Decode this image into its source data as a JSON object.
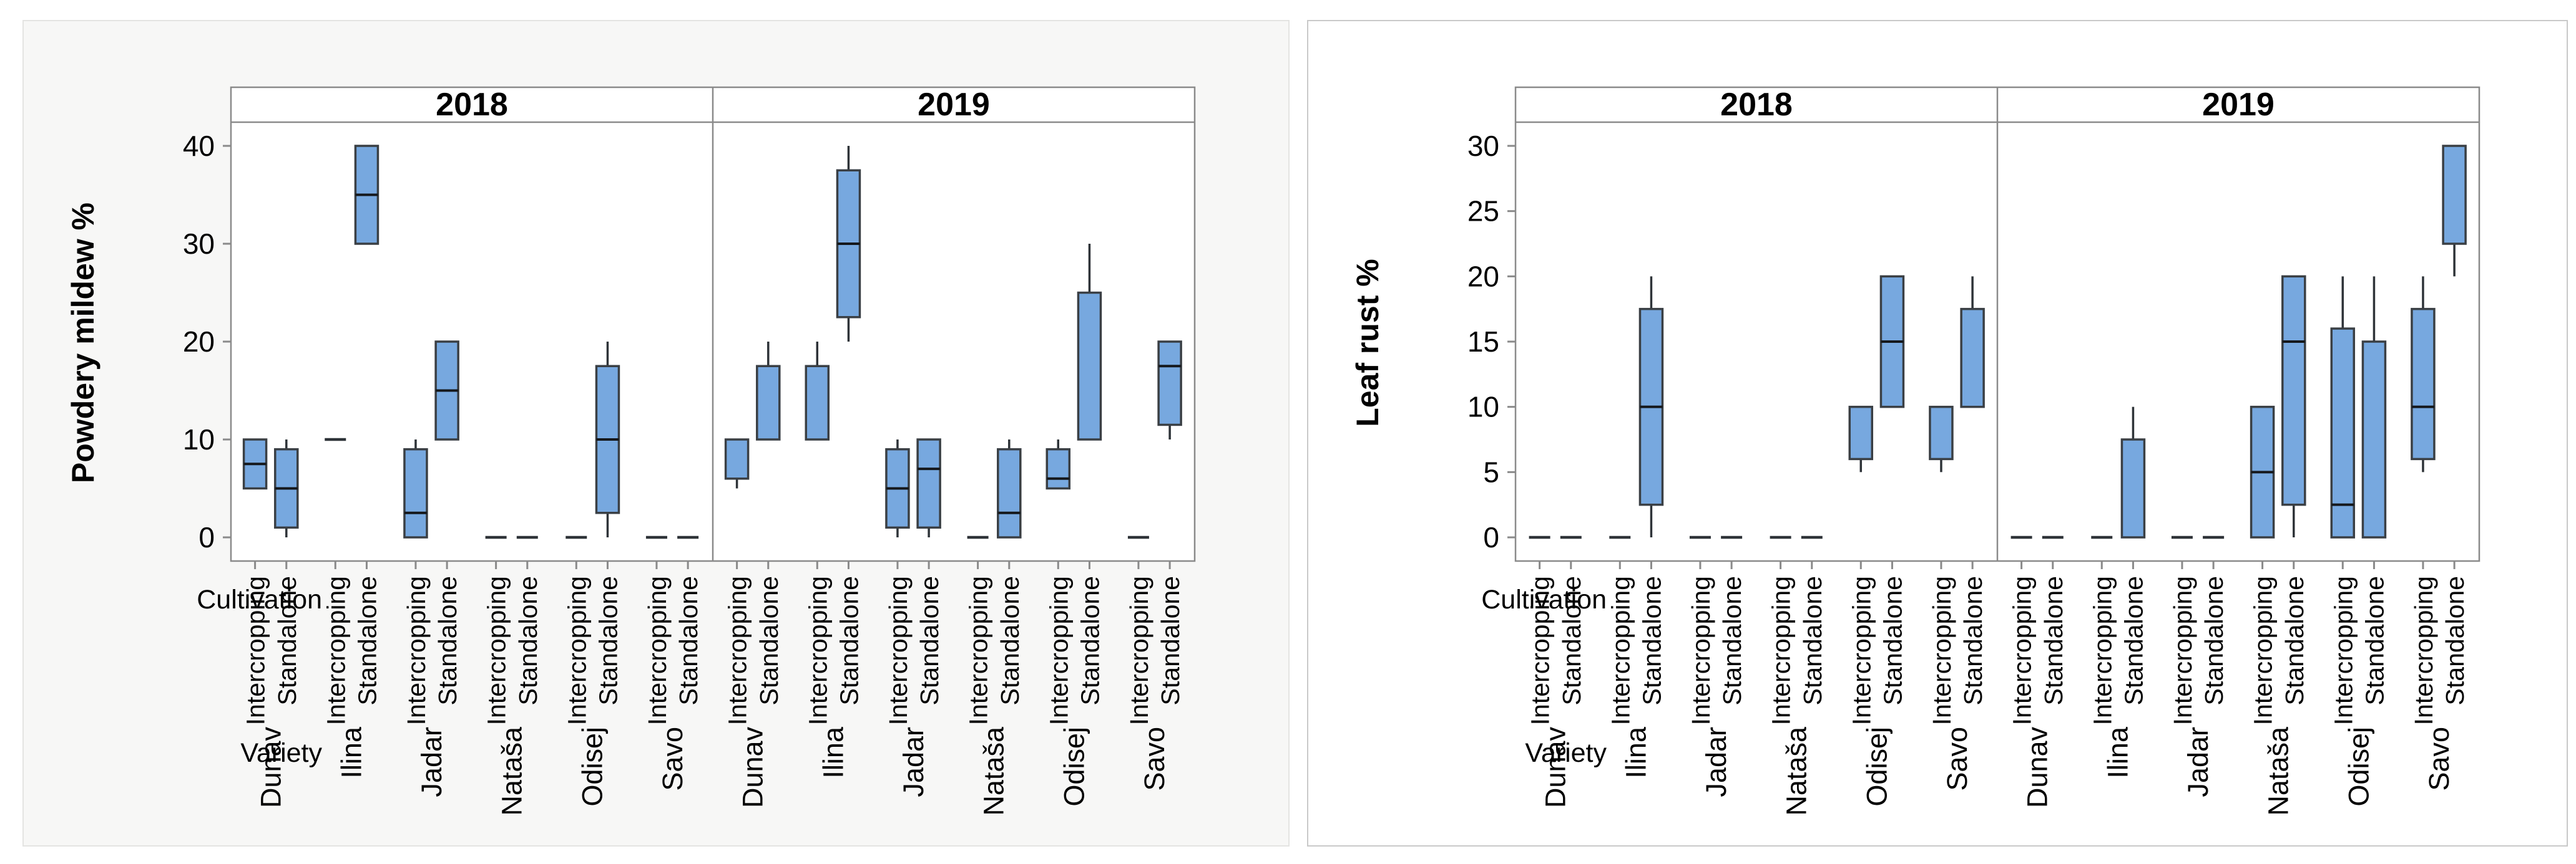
{
  "page": {
    "background": "#ffffff"
  },
  "chart_data": [
    {
      "type": "boxplot",
      "title": "",
      "ylabel": "Powdery mildew %",
      "xlabel": "",
      "panels": [
        "2018",
        "2019"
      ],
      "varieties": [
        "Dunav",
        "Ilina",
        "Jadar",
        "Nataša",
        "Odisej",
        "Savo"
      ],
      "cultivations": [
        "Intercropping",
        "Standalone"
      ],
      "row_labels": {
        "cultivation": "Cultivation",
        "variety": "Variety"
      },
      "yticks": [
        0,
        10,
        20,
        30,
        40
      ],
      "ylim": [
        -2.5,
        42.5
      ],
      "grid": false,
      "legend": "none",
      "colors": {
        "box_fill": "#77A8DF",
        "box_stroke": "#3a3f44",
        "median": "#15181c",
        "whisker": "#2e3338",
        "panel_border": "#8a8a8a",
        "tick": "#8a8a8a",
        "panel_bg": "#ffffff",
        "text": "#000000"
      },
      "boxes": [
        {
          "panel": "2018",
          "variety": "Dunav",
          "cultivation": "Intercropping",
          "low": 5,
          "q1": 5,
          "med": 7.5,
          "q3": 10,
          "high": 10
        },
        {
          "panel": "2018",
          "variety": "Dunav",
          "cultivation": "Standalone",
          "low": 0,
          "q1": 1,
          "med": 5,
          "q3": 9,
          "high": 10
        },
        {
          "panel": "2018",
          "variety": "Ilina",
          "cultivation": "Intercropping",
          "low": 10,
          "q1": 10,
          "med": 10,
          "q3": 10,
          "high": 10
        },
        {
          "panel": "2018",
          "variety": "Ilina",
          "cultivation": "Standalone",
          "low": 30,
          "q1": 30,
          "med": 35,
          "q3": 40,
          "high": 40
        },
        {
          "panel": "2018",
          "variety": "Jadar",
          "cultivation": "Intercropping",
          "low": 0,
          "q1": 0,
          "med": 2.5,
          "q3": 9,
          "high": 10
        },
        {
          "panel": "2018",
          "variety": "Jadar",
          "cultivation": "Standalone",
          "low": 10,
          "q1": 10,
          "med": 15,
          "q3": 20,
          "high": 20
        },
        {
          "panel": "2018",
          "variety": "Nataša",
          "cultivation": "Intercropping",
          "low": 0,
          "q1": 0,
          "med": 0,
          "q3": 0,
          "high": 0
        },
        {
          "panel": "2018",
          "variety": "Nataša",
          "cultivation": "Standalone",
          "low": 0,
          "q1": 0,
          "med": 0,
          "q3": 0,
          "high": 0
        },
        {
          "panel": "2018",
          "variety": "Odisej",
          "cultivation": "Intercropping",
          "low": 0,
          "q1": 0,
          "med": 0,
          "q3": 0,
          "high": 0
        },
        {
          "panel": "2018",
          "variety": "Odisej",
          "cultivation": "Standalone",
          "low": 0,
          "q1": 2.5,
          "med": 10,
          "q3": 17.5,
          "high": 20
        },
        {
          "panel": "2018",
          "variety": "Savo",
          "cultivation": "Intercropping",
          "low": 0,
          "q1": 0,
          "med": 0,
          "q3": 0,
          "high": 0
        },
        {
          "panel": "2018",
          "variety": "Savo",
          "cultivation": "Standalone",
          "low": 0,
          "q1": 0,
          "med": 0,
          "q3": 0,
          "high": 0
        },
        {
          "panel": "2019",
          "variety": "Dunav",
          "cultivation": "Intercropping",
          "low": 5,
          "q1": 6,
          "med": null,
          "q3": 10,
          "high": 10
        },
        {
          "panel": "2019",
          "variety": "Dunav",
          "cultivation": "Standalone",
          "low": 10,
          "q1": 10,
          "med": null,
          "q3": 17.5,
          "high": 20
        },
        {
          "panel": "2019",
          "variety": "Ilina",
          "cultivation": "Intercropping",
          "low": 10,
          "q1": 10,
          "med": null,
          "q3": 17.5,
          "high": 20
        },
        {
          "panel": "2019",
          "variety": "Ilina",
          "cultivation": "Standalone",
          "low": 20,
          "q1": 22.5,
          "med": 30,
          "q3": 37.5,
          "high": 40
        },
        {
          "panel": "2019",
          "variety": "Jadar",
          "cultivation": "Intercropping",
          "low": 0,
          "q1": 1,
          "med": 5,
          "q3": 9,
          "high": 10
        },
        {
          "panel": "2019",
          "variety": "Jadar",
          "cultivation": "Standalone",
          "low": 0,
          "q1": 1,
          "med": 7,
          "q3": 10,
          "high": 10
        },
        {
          "panel": "2019",
          "variety": "Nataša",
          "cultivation": "Intercropping",
          "low": 0,
          "q1": 0,
          "med": 0,
          "q3": 0,
          "high": 0
        },
        {
          "panel": "2019",
          "variety": "Nataša",
          "cultivation": "Standalone",
          "low": 0,
          "q1": 0,
          "med": 2.5,
          "q3": 9,
          "high": 10
        },
        {
          "panel": "2019",
          "variety": "Odisej",
          "cultivation": "Intercropping",
          "low": 5,
          "q1": 5,
          "med": 6,
          "q3": 9,
          "high": 10
        },
        {
          "panel": "2019",
          "variety": "Odisej",
          "cultivation": "Standalone",
          "low": 10,
          "q1": 10,
          "med": null,
          "q3": 25,
          "high": 30
        },
        {
          "panel": "2019",
          "variety": "Savo",
          "cultivation": "Intercropping",
          "low": 0,
          "q1": 0,
          "med": 0,
          "q3": 0,
          "high": 0
        },
        {
          "panel": "2019",
          "variety": "Savo",
          "cultivation": "Standalone",
          "low": 10,
          "q1": 11.5,
          "med": 17.5,
          "q3": 20,
          "high": 20
        }
      ]
    },
    {
      "type": "boxplot",
      "title": "",
      "ylabel": "Leaf rust %",
      "xlabel": "",
      "panels": [
        "2018",
        "2019"
      ],
      "varieties": [
        "Dunav",
        "Ilina",
        "Jadar",
        "Nataša",
        "Odisej",
        "Savo"
      ],
      "cultivations": [
        "Intercropping",
        "Standalone"
      ],
      "row_labels": {
        "cultivation": "Cultivation",
        "variety": "Variety"
      },
      "yticks": [
        0,
        5,
        10,
        15,
        20,
        25,
        30
      ],
      "ylim": [
        -2,
        32
      ],
      "grid": false,
      "legend": "none",
      "colors": {
        "box_fill": "#77A8DF",
        "box_stroke": "#3a3f44",
        "median": "#15181c",
        "whisker": "#2e3338",
        "panel_border": "#8a8a8a",
        "tick": "#8a8a8a",
        "panel_bg": "#ffffff",
        "text": "#000000"
      },
      "boxes": [
        {
          "panel": "2018",
          "variety": "Dunav",
          "cultivation": "Intercropping",
          "low": 0,
          "q1": 0,
          "med": 0,
          "q3": 0,
          "high": 0
        },
        {
          "panel": "2018",
          "variety": "Dunav",
          "cultivation": "Standalone",
          "low": 0,
          "q1": 0,
          "med": 0,
          "q3": 0,
          "high": 0
        },
        {
          "panel": "2018",
          "variety": "Ilina",
          "cultivation": "Intercropping",
          "low": 0,
          "q1": 0,
          "med": 0,
          "q3": 0,
          "high": 0
        },
        {
          "panel": "2018",
          "variety": "Ilina",
          "cultivation": "Standalone",
          "low": 0,
          "q1": 2.5,
          "med": 10,
          "q3": 17.5,
          "high": 20
        },
        {
          "panel": "2018",
          "variety": "Jadar",
          "cultivation": "Intercropping",
          "low": 0,
          "q1": 0,
          "med": 0,
          "q3": 0,
          "high": 0
        },
        {
          "panel": "2018",
          "variety": "Jadar",
          "cultivation": "Standalone",
          "low": 0,
          "q1": 0,
          "med": 0,
          "q3": 0,
          "high": 0
        },
        {
          "panel": "2018",
          "variety": "Nataša",
          "cultivation": "Intercropping",
          "low": 0,
          "q1": 0,
          "med": 0,
          "q3": 0,
          "high": 0
        },
        {
          "panel": "2018",
          "variety": "Nataša",
          "cultivation": "Standalone",
          "low": 0,
          "q1": 0,
          "med": 0,
          "q3": 0,
          "high": 0
        },
        {
          "panel": "2018",
          "variety": "Odisej",
          "cultivation": "Intercropping",
          "low": 5,
          "q1": 6,
          "med": null,
          "q3": 10,
          "high": 10
        },
        {
          "panel": "2018",
          "variety": "Odisej",
          "cultivation": "Standalone",
          "low": 10,
          "q1": 10,
          "med": 15,
          "q3": 20,
          "high": 20
        },
        {
          "panel": "2018",
          "variety": "Savo",
          "cultivation": "Intercropping",
          "low": 5,
          "q1": 6,
          "med": null,
          "q3": 10,
          "high": 10
        },
        {
          "panel": "2018",
          "variety": "Savo",
          "cultivation": "Standalone",
          "low": 10,
          "q1": 10,
          "med": null,
          "q3": 17.5,
          "high": 20
        },
        {
          "panel": "2019",
          "variety": "Dunav",
          "cultivation": "Intercropping",
          "low": 0,
          "q1": 0,
          "med": 0,
          "q3": 0,
          "high": 0
        },
        {
          "panel": "2019",
          "variety": "Dunav",
          "cultivation": "Standalone",
          "low": 0,
          "q1": 0,
          "med": 0,
          "q3": 0,
          "high": 0
        },
        {
          "panel": "2019",
          "variety": "Ilina",
          "cultivation": "Intercropping",
          "low": 0,
          "q1": 0,
          "med": 0,
          "q3": 0,
          "high": 0
        },
        {
          "panel": "2019",
          "variety": "Ilina",
          "cultivation": "Standalone",
          "low": 0,
          "q1": 0,
          "med": null,
          "q3": 7.5,
          "high": 10
        },
        {
          "panel": "2019",
          "variety": "Jadar",
          "cultivation": "Intercropping",
          "low": 0,
          "q1": 0,
          "med": 0,
          "q3": 0,
          "high": 0
        },
        {
          "panel": "2019",
          "variety": "Jadar",
          "cultivation": "Standalone",
          "low": 0,
          "q1": 0,
          "med": 0,
          "q3": 0,
          "high": 0
        },
        {
          "panel": "2019",
          "variety": "Nataša",
          "cultivation": "Intercropping",
          "low": 0,
          "q1": 0,
          "med": 5,
          "q3": 10,
          "high": 10
        },
        {
          "panel": "2019",
          "variety": "Nataša",
          "cultivation": "Standalone",
          "low": 0,
          "q1": 2.5,
          "med": 15,
          "q3": 20,
          "high": 20
        },
        {
          "panel": "2019",
          "variety": "Odisej",
          "cultivation": "Intercropping",
          "low": 0,
          "q1": 0,
          "med": 2.5,
          "q3": 16,
          "high": 20
        },
        {
          "panel": "2019",
          "variety": "Odisej",
          "cultivation": "Standalone",
          "low": 0,
          "q1": 0,
          "med": null,
          "q3": 15,
          "high": 20
        },
        {
          "panel": "2019",
          "variety": "Savo",
          "cultivation": "Intercropping",
          "low": 5,
          "q1": 6,
          "med": 10,
          "q3": 17.5,
          "high": 20
        },
        {
          "panel": "2019",
          "variety": "Savo",
          "cultivation": "Standalone",
          "low": 20,
          "q1": 22.5,
          "med": null,
          "q3": 30,
          "high": 30
        }
      ]
    }
  ]
}
